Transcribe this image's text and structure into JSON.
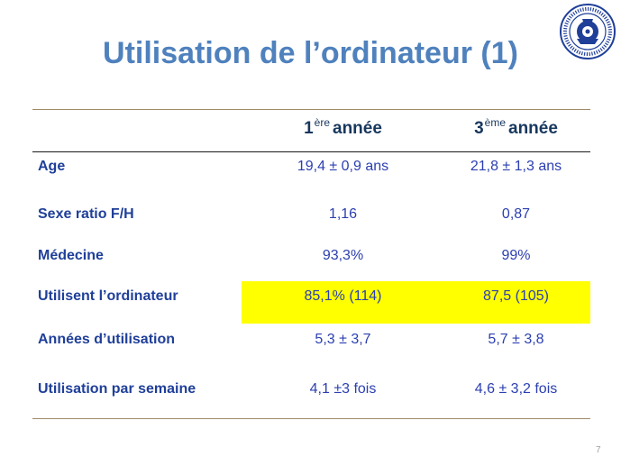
{
  "slide": {
    "title": "Utilisation de l’ordinateur (1)",
    "page_number": "7"
  },
  "logo": {
    "icon": "university-seal-icon",
    "text": "BOTSWANA  LUX MEA LEX  UNIVERSITE DE DAKAR"
  },
  "table": {
    "headers": [
      {
        "num": "1",
        "sup": "ère",
        "word": "année"
      },
      {
        "num": "3",
        "sup": "ème",
        "word": "année"
      }
    ],
    "rows": [
      {
        "label": "Age",
        "v1": "19,4 ± 0,9 ans",
        "v2": "21,8 ± 1,3 ans"
      },
      {
        "label": "Sexe ratio F/H",
        "v1": "1,16",
        "v2": "0,87"
      },
      {
        "label": "Médecine",
        "v1": "93,3%",
        "v2": "99%"
      },
      {
        "label": "Utilisent l’ordinateur",
        "v1": "85,1% (114)",
        "v2": "87,5 (105)",
        "highlighted": true
      },
      {
        "label": "Années d’utilisation",
        "v1": "5,3 ± 3,7",
        "v2": "5,7 ± 3,8"
      },
      {
        "label": "Utilisation par semaine",
        "v1": "4,1 ±3 fois",
        "v2": "4,6 ± 3,2 fois"
      }
    ],
    "highlight_color": "#ffff00"
  },
  "colors": {
    "title": "#4f81bd",
    "label": "#1f3f99",
    "value": "#2b3fb0",
    "header": "#17375e"
  }
}
